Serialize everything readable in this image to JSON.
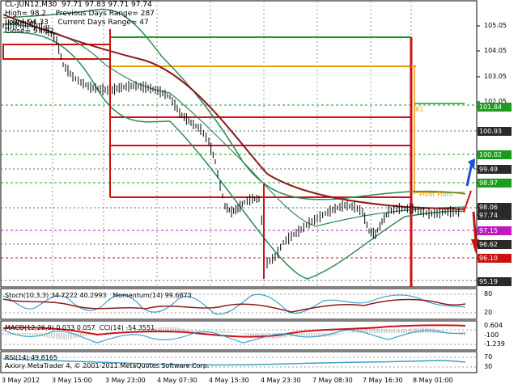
{
  "header": {
    "line1": "CL-JUN12,M30  97.71 97.83 97.71 97.74",
    "line2": "High= 98.2    Previous Days Range= 287",
    "line3": "Low= 94.33    Current Days Range= 47",
    "line4": "Close= 97.52"
  },
  "price_axis": [
    "105.05",
    "104.05",
    "103.05",
    "102.05",
    "101.84",
    "100.93",
    "100.02",
    "99.49",
    "98.97",
    "98.06",
    "97.74",
    "97.15",
    "96.62",
    "96.10",
    "95.19"
  ],
  "price_boxes": [
    {
      "label": "101.84",
      "color": "#1a9e1a"
    },
    {
      "label": "100.93",
      "color": "#2a2a2a"
    },
    {
      "label": "100.02",
      "color": "#1a9e1a"
    },
    {
      "label": "99.49",
      "color": "#2a2a2a"
    },
    {
      "label": "98.97",
      "color": "#1a9e1a"
    },
    {
      "label": "98.06",
      "color": "#2a2a2a"
    },
    {
      "label": "97.74",
      "color": "#2a2a2a"
    },
    {
      "label": "97.15",
      "color": "#c218c2"
    },
    {
      "label": "96.62",
      "color": "#2a2a2a"
    },
    {
      "label": "96.10",
      "color": "#cc1111"
    },
    {
      "label": "95.19",
      "color": "#2a2a2a"
    }
  ],
  "annotations": {
    "pivot": "Pivot Point",
    "r1": "R1"
  },
  "indicators": {
    "stoch_label": "Stoch(10,3,3) 34.7222 40.2993   Momentum(14) 99.6873",
    "stoch_axis": [
      "80",
      "20"
    ],
    "macd_label": "MACD(12,26,9) 0.033 0.057  CCI(14) -54.3551",
    "macd_axis": [
      "0.604",
      "-100",
      "-1.239"
    ],
    "rsi_label": "RSI(14) 49.8165",
    "rsi_axis": [
      "70",
      "30"
    ],
    "copyright": "Axiory MetaTrader 4, © 2001-2011 MetaQuotes Software Corp."
  },
  "time_axis": [
    "3 May 2012",
    "3 May 15:00",
    "3 May 23:00",
    "4 May 07:30",
    "4 May 15:30",
    "4 May 23:30",
    "7 May 08:30",
    "7 May 16:30",
    "8 May 01:00"
  ],
  "colors": {
    "up": "#1a9e1a",
    "down": "#cc1111",
    "ma": "#8b1a1a",
    "band": "#2e8b57",
    "orange": "#e8a000",
    "blue_arrow": "#1e4fd8"
  }
}
